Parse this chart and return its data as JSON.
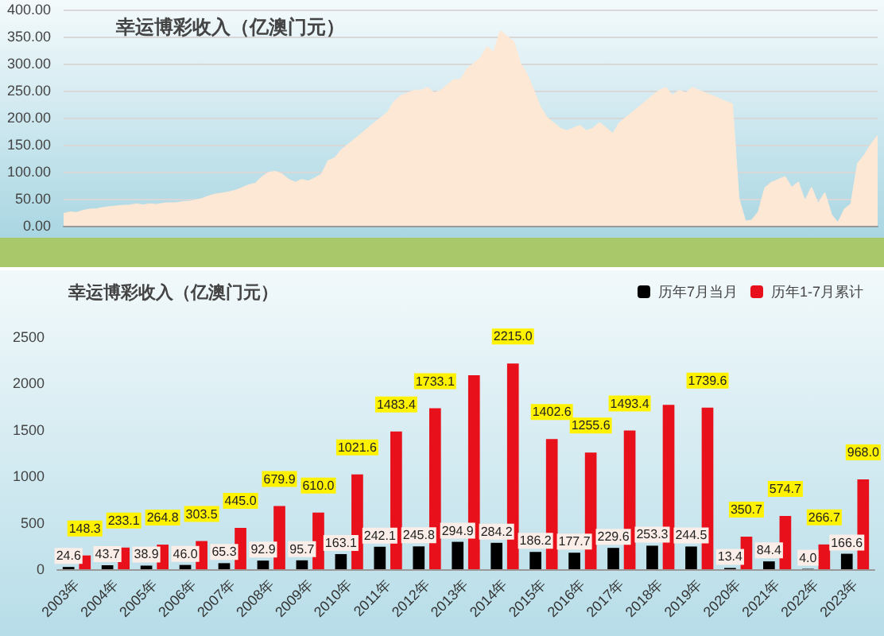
{
  "chart_data": [
    {
      "type": "area",
      "title": "幸运博彩收入（亿澳门元）",
      "categories": [
        null,
        null,
        null,
        null,
        null,
        null,
        null,
        null,
        null,
        null,
        null,
        null,
        null,
        null,
        null,
        null,
        null,
        null,
        null,
        null,
        null,
        null,
        null,
        null,
        null,
        null,
        null,
        null,
        null,
        null,
        null,
        null,
        null,
        null,
        null,
        null,
        null,
        null,
        null,
        null,
        null,
        null,
        null,
        null,
        null,
        null,
        null,
        null,
        null,
        null,
        null,
        null,
        null,
        null,
        null,
        null,
        null,
        null,
        null,
        null,
        null,
        null,
        null,
        null,
        null,
        null,
        null,
        null,
        null,
        null,
        null,
        null,
        null,
        null,
        null,
        null,
        null,
        null,
        null,
        null,
        null,
        null,
        null,
        null,
        null,
        null,
        null,
        null,
        null,
        null,
        null,
        null,
        null,
        null,
        null,
        null,
        null,
        null,
        null,
        null,
        null,
        null,
        null,
        null,
        null,
        null,
        null,
        null,
        null,
        null,
        null,
        null,
        null,
        null,
        null,
        null,
        null,
        null,
        null,
        null,
        null,
        null,
        null,
        null
      ],
      "series": [
        {
          "color": "#fde8d6",
          "values": [
            22,
            25,
            24,
            28,
            30,
            31,
            33,
            35,
            36,
            37,
            38,
            40,
            38,
            40,
            39,
            41,
            42,
            42,
            44,
            45,
            47,
            50,
            55,
            58,
            60,
            62,
            65,
            70,
            75,
            78,
            90,
            98,
            100,
            95,
            85,
            80,
            85,
            82,
            88,
            95,
            120,
            125,
            140,
            150,
            160,
            170,
            180,
            190,
            200,
            210,
            230,
            240,
            245,
            250,
            250,
            255,
            245,
            250,
            260,
            270,
            270,
            290,
            300,
            310,
            330,
            320,
            360,
            350,
            340,
            300,
            280,
            250,
            220,
            200,
            190,
            180,
            175,
            180,
            185,
            175,
            180,
            190,
            180,
            170,
            190,
            200,
            210,
            220,
            230,
            240,
            250,
            255,
            240,
            250,
            245,
            255,
            250,
            245,
            240,
            235,
            230,
            225,
            50,
            8,
            10,
            25,
            70,
            80,
            85,
            90,
            70,
            80,
            45,
            70,
            40,
            60,
            20,
            5,
            30,
            40,
            115,
            130,
            150,
            166
          ]
        }
      ],
      "ylim": [
        0,
        400
      ],
      "yticks": [
        {
          "value": 0,
          "label": "0.00"
        },
        {
          "value": 50,
          "label": "50.00"
        },
        {
          "value": 100,
          "label": "100.00"
        },
        {
          "value": 150,
          "label": "150.00"
        },
        {
          "value": 200,
          "label": "200.00"
        },
        {
          "value": 250,
          "label": "250.00"
        },
        {
          "value": 300,
          "label": "300.00"
        },
        {
          "value": 350,
          "label": "350.00"
        },
        {
          "value": 400,
          "label": "400.00"
        }
      ],
      "grid": "y"
    },
    {
      "type": "bar",
      "title": "幸运博彩收入（亿澳门元）",
      "categories": [
        "2003年",
        "2004年",
        "2005年",
        "2006年",
        "2007年",
        "2008年",
        "2009年",
        "2010年",
        "2011年",
        "2012年",
        "2013年",
        "2014年",
        "2015年",
        "2016年",
        "2017年",
        "2018年",
        "2019年",
        "2020年",
        "2021年",
        "2022年",
        "2023年"
      ],
      "series": [
        {
          "name": "历年7月当月",
          "color": "#000000",
          "values": [
            24.6,
            43.7,
            38.9,
            46.0,
            65.3,
            92.9,
            95.7,
            163.1,
            242.1,
            245.8,
            294.9,
            284.2,
            186.2,
            177.7,
            229.6,
            253.3,
            244.5,
            13.4,
            84.4,
            4.0,
            166.6
          ],
          "value_labels": [
            "24.6",
            "43.7",
            "38.9",
            "46.0",
            "65.3",
            "92.9",
            "95.7",
            "163.1",
            "242.1",
            "245.8",
            "294.9",
            "284.2",
            "186.2",
            "177.7",
            "229.6",
            "253.3",
            "244.5",
            "13.4",
            "84.4",
            "4.0",
            "166.6"
          ]
        },
        {
          "name": "历年1-7月累计",
          "color": "#e8101a",
          "values": [
            148.3,
            233.1,
            264.8,
            303.5,
            445.0,
            679.9,
            610.0,
            1021.6,
            1483.4,
            1733.1,
            2090,
            2215.0,
            1402.6,
            1255.6,
            1493.4,
            1770,
            1739.6,
            350.7,
            574.7,
            266.7,
            968.0
          ],
          "value_labels": [
            "148.3",
            "233.1",
            "264.8",
            "303.5",
            "445.0",
            "679.9",
            "610.0",
            "1021.6",
            "1483.4",
            "1733.1",
            null,
            "2215.0",
            "1402.6",
            "1255.6",
            "1493.4",
            null,
            "1739.6",
            "350.7",
            "574.7",
            "266.7",
            "968.0"
          ]
        }
      ],
      "ylim": [
        0,
        2500
      ],
      "yticks": [
        0,
        500,
        1000,
        1500,
        2000,
        2500
      ],
      "legend": "top right"
    }
  ]
}
